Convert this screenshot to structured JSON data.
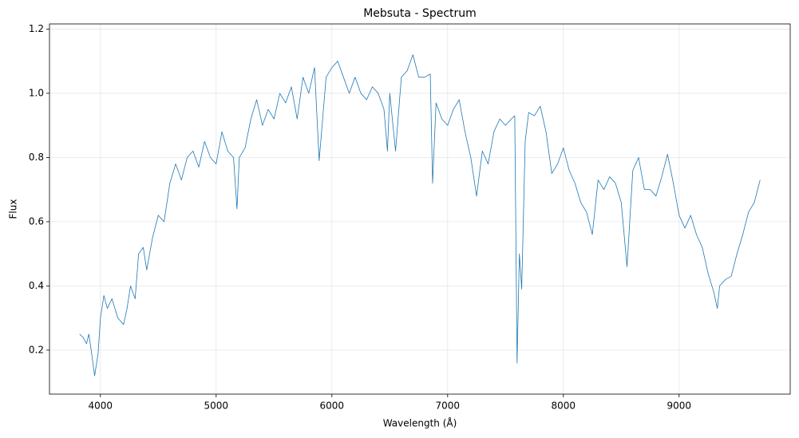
{
  "chart_data": {
    "type": "line",
    "title": "Mebsuta - Spectrum",
    "x_label": "Wavelength (Å)",
    "y_label": "Flux",
    "x": [
      3820,
      3850,
      3880,
      3900,
      3920,
      3950,
      3980,
      4000,
      4030,
      4060,
      4100,
      4150,
      4200,
      4230,
      4260,
      4300,
      4330,
      4370,
      4400,
      4450,
      4500,
      4550,
      4600,
      4650,
      4700,
      4750,
      4800,
      4850,
      4900,
      4950,
      5000,
      5050,
      5100,
      5150,
      5180,
      5200,
      5250,
      5300,
      5350,
      5400,
      5450,
      5500,
      5550,
      5600,
      5650,
      5700,
      5750,
      5800,
      5850,
      5890,
      5950,
      6000,
      6050,
      6100,
      6150,
      6200,
      6250,
      6300,
      6350,
      6400,
      6450,
      6480,
      6500,
      6550,
      6600,
      6650,
      6700,
      6750,
      6800,
      6850,
      6870,
      6900,
      6950,
      7000,
      7050,
      7100,
      7150,
      7200,
      7250,
      7300,
      7350,
      7400,
      7450,
      7500,
      7550,
      7580,
      7600,
      7620,
      7640,
      7670,
      7700,
      7750,
      7800,
      7850,
      7900,
      7950,
      8000,
      8050,
      8100,
      8150,
      8200,
      8250,
      8300,
      8350,
      8400,
      8450,
      8500,
      8550,
      8600,
      8650,
      8700,
      8750,
      8800,
      8850,
      8900,
      8950,
      9000,
      9050,
      9100,
      9150,
      9200,
      9250,
      9300,
      9330,
      9350,
      9400,
      9450,
      9500,
      9550,
      9600,
      9650,
      9700
    ],
    "series": [
      {
        "name": "Flux",
        "color": "#1f77b4",
        "values": [
          0.25,
          0.24,
          0.22,
          0.25,
          0.2,
          0.12,
          0.19,
          0.3,
          0.37,
          0.33,
          0.36,
          0.3,
          0.28,
          0.33,
          0.4,
          0.36,
          0.5,
          0.52,
          0.45,
          0.55,
          0.62,
          0.6,
          0.72,
          0.78,
          0.73,
          0.8,
          0.82,
          0.77,
          0.85,
          0.8,
          0.78,
          0.88,
          0.82,
          0.8,
          0.64,
          0.8,
          0.83,
          0.92,
          0.98,
          0.9,
          0.95,
          0.92,
          1.0,
          0.97,
          1.02,
          0.92,
          1.05,
          1.0,
          1.08,
          0.79,
          1.05,
          1.08,
          1.1,
          1.05,
          1.0,
          1.05,
          1.0,
          0.98,
          1.02,
          1.0,
          0.95,
          0.82,
          1.0,
          0.82,
          1.05,
          1.07,
          1.12,
          1.05,
          1.05,
          1.06,
          0.72,
          0.97,
          0.92,
          0.9,
          0.95,
          0.98,
          0.88,
          0.8,
          0.68,
          0.82,
          0.78,
          0.88,
          0.92,
          0.9,
          0.92,
          0.93,
          0.16,
          0.5,
          0.39,
          0.85,
          0.94,
          0.93,
          0.96,
          0.88,
          0.75,
          0.78,
          0.83,
          0.76,
          0.72,
          0.66,
          0.63,
          0.56,
          0.73,
          0.7,
          0.74,
          0.72,
          0.66,
          0.46,
          0.76,
          0.8,
          0.7,
          0.7,
          0.68,
          0.74,
          0.81,
          0.72,
          0.62,
          0.58,
          0.62,
          0.56,
          0.52,
          0.44,
          0.38,
          0.33,
          0.4,
          0.42,
          0.43,
          0.5,
          0.56,
          0.63,
          0.66,
          0.73
        ]
      }
    ],
    "xlim": [
      3560,
      9960
    ],
    "xticks": [
      4000,
      5000,
      6000,
      7000,
      8000,
      9000
    ],
    "ylim": [
      0.063,
      1.216
    ],
    "yticks": [
      0.2,
      0.4,
      0.6,
      0.8,
      {
        "value": 1,
        "label": "1.0"
      },
      1.2
    ],
    "grid": true
  }
}
